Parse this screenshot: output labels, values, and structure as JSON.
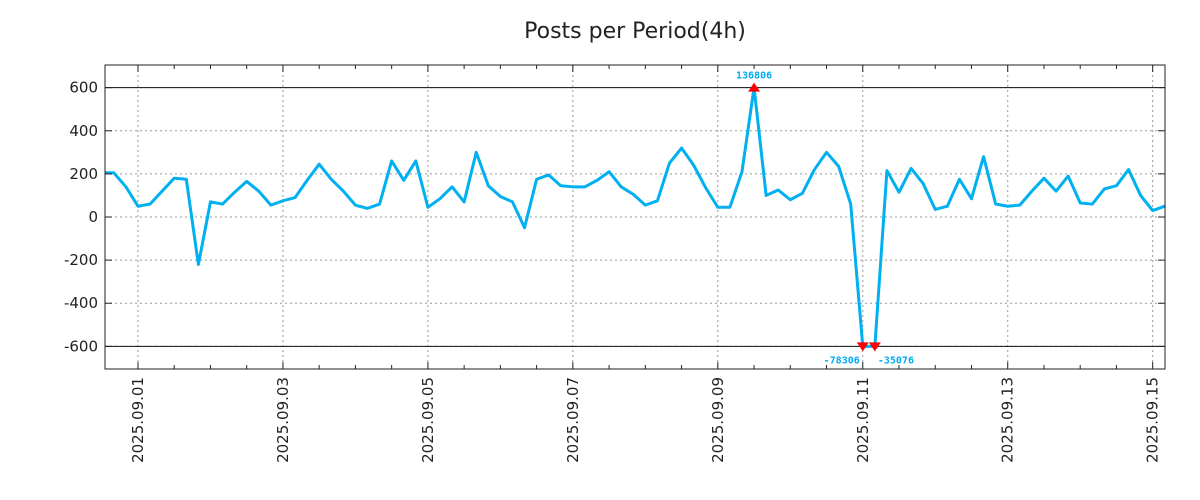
{
  "chart_data": {
    "type": "line",
    "title": "Posts per Period(4h)",
    "xlabel": "",
    "ylabel": "",
    "x_unit": "days since 2025.09.01 00:00, 4h steps",
    "x_start": -0.5,
    "x_step": 0.16667,
    "xlim": [
      -0.455,
      14.17
    ],
    "ylim": [
      -705,
      705
    ],
    "grid": true,
    "line_color": "#00b0f0",
    "marker_color": "#ff0000",
    "threshold_lines": [
      600,
      -600
    ],
    "x_ticks": [
      {
        "value": 0,
        "label": "2025.09.01"
      },
      {
        "value": 2,
        "label": "2025.09.03"
      },
      {
        "value": 4,
        "label": "2025.09.05"
      },
      {
        "value": 6,
        "label": "2025.09.07"
      },
      {
        "value": 8,
        "label": "2025.09.09"
      },
      {
        "value": 10,
        "label": "2025.09.11"
      },
      {
        "value": 12,
        "label": "2025.09.13"
      },
      {
        "value": 14,
        "label": "2025.09.15"
      }
    ],
    "y_ticks": [
      {
        "value": 600,
        "label": "600"
      },
      {
        "value": 400,
        "label": "400"
      },
      {
        "value": 200,
        "label": "200"
      },
      {
        "value": 0,
        "label": "0"
      },
      {
        "value": -200,
        "label": "-200"
      },
      {
        "value": -400,
        "label": "-400"
      },
      {
        "value": -600,
        "label": "-600"
      }
    ],
    "values": [
      205,
      205,
      140,
      50,
      60,
      120,
      180,
      175,
      -220,
      70,
      60,
      115,
      165,
      120,
      55,
      75,
      90,
      170,
      245,
      175,
      120,
      55,
      40,
      60,
      260,
      170,
      260,
      45,
      85,
      140,
      70,
      300,
      145,
      95,
      70,
      -50,
      175,
      195,
      145,
      140,
      140,
      170,
      210,
      140,
      105,
      55,
      75,
      250,
      320,
      240,
      135,
      45,
      45,
      210,
      600,
      100,
      125,
      80,
      110,
      220,
      300,
      235,
      60,
      -600,
      -600,
      215,
      115,
      225,
      155,
      35,
      50,
      175,
      85,
      280,
      60,
      50,
      55,
      120,
      180,
      120,
      190,
      65,
      60,
      130,
      145,
      220,
      100,
      30,
      50
    ],
    "annotations": [
      {
        "index": 54,
        "direction": "up",
        "label": "136806"
      },
      {
        "index": 63,
        "direction": "down",
        "label": "-78306"
      },
      {
        "index": 64,
        "direction": "down",
        "label": "-35076"
      }
    ]
  }
}
